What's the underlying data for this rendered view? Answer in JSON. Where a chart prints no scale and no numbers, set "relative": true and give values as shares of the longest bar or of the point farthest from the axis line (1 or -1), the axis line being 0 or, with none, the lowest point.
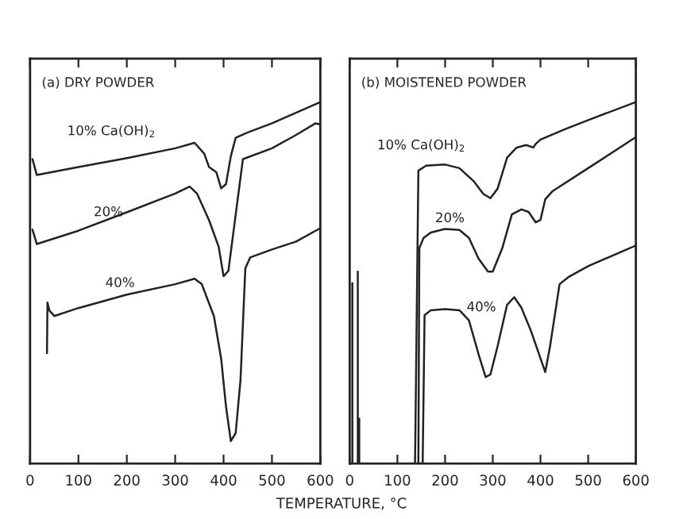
{
  "chart_data": [
    {
      "type": "line",
      "title": "(a) DRY POWDER",
      "xlabel": "TEMPERATURE, °C",
      "relative": true,
      "xlim": [
        0,
        600
      ],
      "xticks": [
        0,
        100,
        200,
        300,
        400,
        500,
        600
      ],
      "tick_labels": "x",
      "grid": false,
      "legend": false,
      "series": [
        {
          "name": "10% Ca(OH)$_{2}$",
          "color": "#222222",
          "x": [
            5,
            14,
            100,
            200,
            300,
            340,
            360,
            370,
            385,
            395,
            405,
            415,
            425,
            450,
            500,
            600
          ],
          "values": [
            0.842,
            0.798,
            0.82,
            0.845,
            0.872,
            0.887,
            0.857,
            0.82,
            0.806,
            0.761,
            0.773,
            0.85,
            0.901,
            0.916,
            0.941,
            1.0
          ]
        },
        {
          "name": "20%",
          "color": "#222222",
          "x": [
            5,
            14,
            100,
            200,
            300,
            330,
            345,
            370,
            390,
            400,
            410,
            425,
            440,
            500,
            550,
            590,
            600
          ],
          "values": [
            0.647,
            0.607,
            0.644,
            0.695,
            0.747,
            0.766,
            0.747,
            0.673,
            0.599,
            0.518,
            0.533,
            0.688,
            0.842,
            0.872,
            0.909,
            0.941,
            0.938
          ]
        },
        {
          "name": "40%",
          "color": "#222222",
          "x": [
            35,
            36,
            40,
            50,
            100,
            200,
            300,
            340,
            355,
            380,
            395,
            405,
            415,
            425,
            435,
            445,
            455,
            500,
            550,
            600
          ],
          "values": [
            0.305,
            0.445,
            0.423,
            0.408,
            0.43,
            0.467,
            0.496,
            0.511,
            0.496,
            0.408,
            0.29,
            0.158,
            0.062,
            0.084,
            0.231,
            0.54,
            0.57,
            0.592,
            0.614,
            0.651
          ]
        }
      ]
    },
    {
      "type": "line",
      "title": "(b) MOISTENED POWDER",
      "relative": true,
      "xlim": [
        0,
        600
      ],
      "xticks": [
        0,
        100,
        200,
        300,
        400,
        500,
        600
      ],
      "tick_labels": "x",
      "grid": false,
      "legend": false,
      "series": [
        {
          "name": "10% Ca(OH)$_{2}$",
          "color": "#222222",
          "x": [
            137,
            144,
            160,
            200,
            230,
            260,
            280,
            295,
            310,
            330,
            350,
            370,
            385,
            390,
            400,
            450,
            500,
            600
          ],
          "values": [
            0,
            0.81,
            0.824,
            0.827,
            0.817,
            0.781,
            0.746,
            0.734,
            0.76,
            0.846,
            0.874,
            0.881,
            0.874,
            0.884,
            0.896,
            0.924,
            0.95,
            1.0
          ]
        },
        {
          "name": "20%",
          "color": "#222222",
          "x": [
            144,
            146,
            155,
            170,
            200,
            230,
            250,
            270,
            290,
            300,
            320,
            340,
            360,
            375,
            390,
            400,
            410,
            425,
            500,
            600
          ],
          "values": [
            0,
            0.596,
            0.624,
            0.639,
            0.649,
            0.646,
            0.624,
            0.567,
            0.531,
            0.531,
            0.596,
            0.689,
            0.703,
            0.696,
            0.667,
            0.674,
            0.731,
            0.753,
            0.817,
            0.903
          ]
        },
        {
          "name": "40%",
          "color": "#222222",
          "x": [
            153,
            157,
            170,
            200,
            230,
            250,
            270,
            285,
            295,
            310,
            330,
            345,
            360,
            380,
            395,
            410,
            420,
            440,
            460,
            500,
            600
          ],
          "values": [
            0,
            0.41,
            0.424,
            0.427,
            0.424,
            0.396,
            0.303,
            0.239,
            0.246,
            0.324,
            0.439,
            0.46,
            0.431,
            0.367,
            0.31,
            0.253,
            0.324,
            0.496,
            0.517,
            0.546,
            0.603
          ]
        },
        {
          "color": "#222222",
          "x": [
            5.6,
            5.6
          ],
          "values": [
            0,
            0.499
          ]
        },
        {
          "color": "#222222",
          "x": [
            17,
            17
          ],
          "values": [
            0,
            0.531
          ]
        },
        {
          "color": "#222222",
          "x": [
            20,
            20
          ],
          "values": [
            0,
            0.124
          ]
        }
      ]
    }
  ]
}
